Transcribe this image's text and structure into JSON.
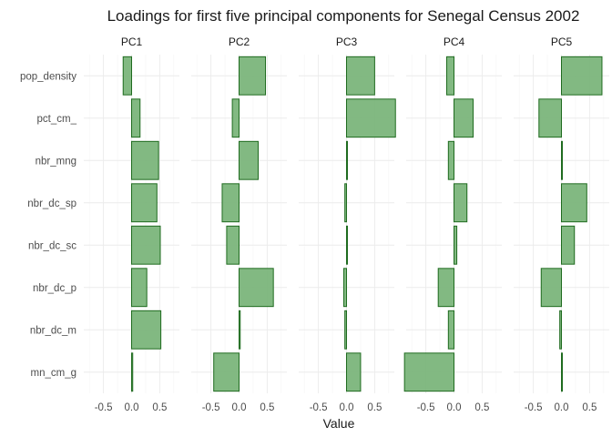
{
  "chart_data": {
    "type": "bar",
    "orientation": "horizontal",
    "faceted": true,
    "title": "Loadings for first five principal components  for Senegal Census 2002",
    "xlabel": "Value",
    "ylabel": "",
    "xlim": [
      -0.85,
      0.85
    ],
    "xticks": [
      -0.5,
      0.0,
      0.5
    ],
    "xtick_labels": [
      "-0.5",
      "0.0",
      "0.5"
    ],
    "categories": [
      "pop_density",
      "pct_cm_",
      "nbr_mng",
      "nbr_dc_sp",
      "nbr_dc_sc",
      "nbr_dc_p",
      "nbr_dc_m",
      "mn_cm_g"
    ],
    "series": [
      {
        "name": "PC1",
        "values": [
          -0.15,
          0.15,
          0.48,
          0.45,
          0.51,
          0.27,
          0.52,
          0.02
        ]
      },
      {
        "name": "PC2",
        "values": [
          0.47,
          -0.12,
          0.34,
          -0.3,
          -0.22,
          0.61,
          0.02,
          -0.45
        ]
      },
      {
        "name": "PC3",
        "values": [
          0.5,
          0.87,
          0.01,
          -0.03,
          0.01,
          -0.05,
          -0.03,
          0.25
        ]
      },
      {
        "name": "PC4",
        "values": [
          -0.13,
          0.34,
          -0.1,
          0.23,
          0.05,
          -0.28,
          -0.1,
          -0.88
        ]
      },
      {
        "name": "PC5",
        "values": [
          0.72,
          -0.4,
          0.01,
          0.45,
          0.23,
          -0.36,
          -0.03,
          0.01
        ]
      }
    ],
    "grid": true,
    "legend": "none",
    "colors": {
      "bar_fill": "#77b377",
      "bar_stroke": "#1f6b1f"
    }
  }
}
